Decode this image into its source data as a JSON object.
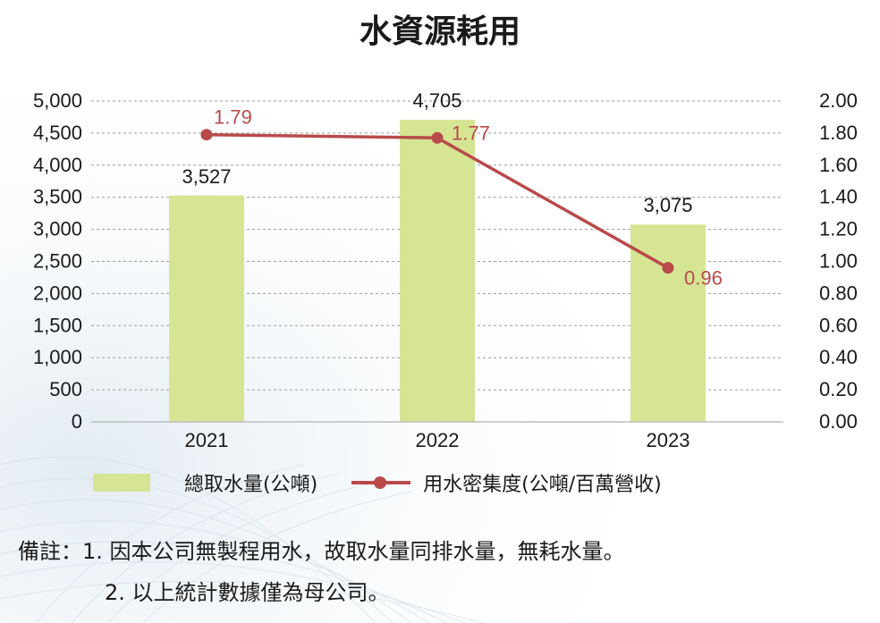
{
  "chart_data": {
    "type": "bar",
    "title": "水資源耗用",
    "categories": [
      "2021",
      "2022",
      "2023"
    ],
    "series": [
      {
        "name": "總取水量(公噸)",
        "type": "bar",
        "axis": "left",
        "values": [
          3527,
          4705,
          3075
        ],
        "labels": [
          "3,527",
          "4,705",
          "3,075"
        ],
        "color": "#d5e593"
      },
      {
        "name": "用水密集度(公噸/百萬營收)",
        "type": "line",
        "axis": "right",
        "values": [
          1.79,
          1.77,
          0.96
        ],
        "labels": [
          "1.79",
          "1.77",
          "0.96"
        ],
        "color": "#b94a4a"
      }
    ],
    "y_left": {
      "ylim": [
        0,
        5000
      ],
      "ticks": [
        "0",
        "500",
        "1,000",
        "1,500",
        "2,000",
        "2,500",
        "3,000",
        "3,500",
        "4,000",
        "4,500",
        "5,000"
      ]
    },
    "y_right": {
      "ylim": [
        0,
        2.0
      ],
      "ticks": [
        "0.00",
        "0.20",
        "0.40",
        "0.60",
        "0.80",
        "1.00",
        "1.20",
        "1.40",
        "1.60",
        "1.80",
        "2.00"
      ]
    },
    "grid": true,
    "legend_position": "bottom"
  },
  "notes": {
    "line1": "備註：1. 因本公司無製程用水，故取水量同排水量，無耗水量。",
    "line2": "2. 以上統計數據僅為母公司。"
  }
}
